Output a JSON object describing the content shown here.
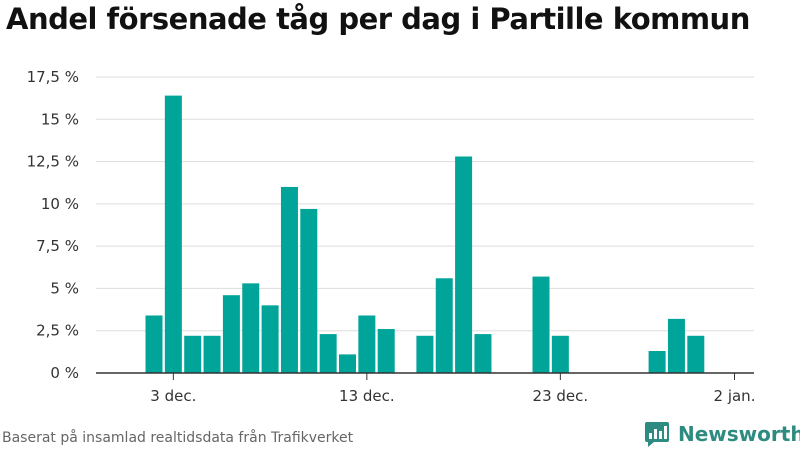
{
  "header": {
    "title": "Andel försenade tåg per dag i Partille kommun"
  },
  "footer": {
    "source": "Baserat på insamlad realtidsdata från Trafikverket",
    "brand": "Newsworthy"
  },
  "icons": {
    "brand_logo": "newsworthy-logo-icon"
  },
  "colors": {
    "bar": "#00a499",
    "grid": "#dddddd",
    "axis": "#333333",
    "brand": "#2e8b82"
  },
  "chart_data": {
    "type": "bar",
    "title": "Andel försenade tåg per dag i Partille kommun",
    "xlabel": "",
    "ylabel": "",
    "ylim": [
      0,
      17.5
    ],
    "yticks": [
      {
        "value": 0,
        "label": "0 %"
      },
      {
        "value": 2.5,
        "label": "2,5 %"
      },
      {
        "value": 5,
        "label": "5 %"
      },
      {
        "value": 7.5,
        "label": "7,5 %"
      },
      {
        "value": 10,
        "label": "10 %"
      },
      {
        "value": 12.5,
        "label": "12,5 %"
      },
      {
        "value": 15,
        "label": "15 %"
      },
      {
        "value": 17.5,
        "label": "17,5 %"
      }
    ],
    "xticks": [
      {
        "date": "3 dec.",
        "label": "3 dec."
      },
      {
        "date": "13 dec.",
        "label": "13 dec."
      },
      {
        "date": "23 dec.",
        "label": "23 dec."
      },
      {
        "date": "2 jan.",
        "label": "2 jan."
      }
    ],
    "grid": true,
    "categories": [
      "2 dec.",
      "3 dec.",
      "4 dec.",
      "5 dec.",
      "6 dec.",
      "7 dec.",
      "8 dec.",
      "9 dec.",
      "10 dec.",
      "11 dec.",
      "12 dec.",
      "13 dec.",
      "14 dec.",
      "15 dec.",
      "16 dec.",
      "17 dec.",
      "18 dec.",
      "19 dec.",
      "20 dec.",
      "21 dec.",
      "22 dec.",
      "23 dec.",
      "24 dec.",
      "25 dec.",
      "26 dec.",
      "27 dec.",
      "28 dec.",
      "29 dec.",
      "30 dec.",
      "31 dec."
    ],
    "values": [
      3.4,
      16.4,
      2.2,
      2.2,
      4.6,
      5.3,
      4.0,
      11.0,
      9.7,
      2.3,
      1.1,
      3.4,
      2.6,
      null,
      2.2,
      5.6,
      12.8,
      2.3,
      null,
      null,
      5.7,
      2.2,
      null,
      null,
      null,
      null,
      1.3,
      3.2,
      2.2,
      null
    ]
  }
}
